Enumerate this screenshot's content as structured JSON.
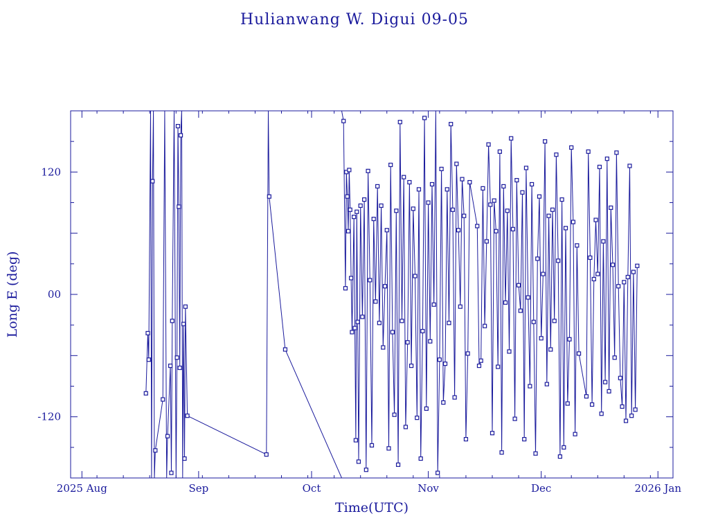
{
  "chart_data": {
    "type": "line",
    "title": "Hulianwang W. Digui 09-05",
    "xlabel": "Time(UTC)",
    "ylabel": "Long E (deg)",
    "x_range": [
      "2025-07-29",
      "2026-01-05"
    ],
    "ylim": [
      -180,
      180
    ],
    "x_ticks": [
      {
        "date": "2025-08-01",
        "label": "2025 Aug"
      },
      {
        "date": "2025-09-01",
        "label": "Sep"
      },
      {
        "date": "2025-10-01",
        "label": "Oct"
      },
      {
        "date": "2025-11-01",
        "label": "Nov"
      },
      {
        "date": "2025-12-01",
        "label": "Dec"
      },
      {
        "date": "2026-01-01",
        "label": "2026 Jan"
      }
    ],
    "y_ticks": [
      {
        "value": -120,
        "label": "-120"
      },
      {
        "value": 0,
        "label": "00"
      },
      {
        "value": 120,
        "label": "120"
      }
    ],
    "marker": "square",
    "color": "#1a1a9c",
    "series": [
      {
        "points": [
          [
            "2025-08-18T00:00",
            -97
          ],
          [
            "2025-08-18T12:00",
            -38
          ],
          [
            "2025-08-18T18:00",
            -64
          ],
          [
            "2025-08-19T06:00",
            180
          ],
          [
            "2025-08-19T12:00",
            -180
          ],
          [
            "2025-08-19T18:00",
            111
          ],
          [
            "2025-08-20T00:00",
            180
          ],
          [
            "2025-08-20T06:00",
            -180
          ],
          [
            "2025-08-20T12:00",
            -153
          ],
          [
            "2025-08-22T12:00",
            -103
          ],
          [
            "2025-08-23T00:00",
            180
          ],
          [
            "2025-08-23T12:00",
            -180
          ],
          [
            "2025-08-23T18:00",
            -139
          ],
          [
            "2025-08-24T12:00",
            -70
          ],
          [
            "2025-08-24T18:00",
            -175
          ],
          [
            "2025-08-25T00:00",
            -26
          ],
          [
            "2025-08-25T12:00",
            180
          ],
          [
            "2025-08-26T00:00",
            -180
          ],
          [
            "2025-08-26T06:00",
            -62
          ],
          [
            "2025-08-26T12:00",
            165
          ],
          [
            "2025-08-26T18:00",
            86
          ],
          [
            "2025-08-27T00:00",
            -72
          ],
          [
            "2025-08-27T06:00",
            156
          ],
          [
            "2025-08-27T12:00",
            180
          ],
          [
            "2025-08-27T18:00",
            -180
          ],
          [
            "2025-08-28T00:00",
            -29
          ],
          [
            "2025-08-28T06:00",
            -161
          ],
          [
            "2025-08-28T12:00",
            -12
          ],
          [
            "2025-08-29T00:00",
            -119
          ],
          [
            "2025-09-19T00:00",
            -157
          ],
          [
            "2025-09-19T12:00",
            180
          ],
          [
            "2025-09-19T18:00",
            96
          ],
          [
            "2025-09-24T00:00",
            -54
          ],
          [
            "2025-10-09T00:00",
            -180
          ]
        ]
      },
      {
        "points": [
          [
            "2025-10-09T00:00",
            180
          ],
          [
            "2025-10-09T12:00",
            170
          ],
          [
            "2025-10-10T00:00",
            6
          ],
          [
            "2025-10-10T06:00",
            120
          ],
          [
            "2025-10-10T12:00",
            96
          ],
          [
            "2025-10-10T18:00",
            62
          ],
          [
            "2025-10-11T00:00",
            122
          ],
          [
            "2025-10-11T06:00",
            83
          ],
          [
            "2025-10-11T12:00",
            16
          ],
          [
            "2025-10-11T18:00",
            -37
          ],
          [
            "2025-10-12T06:00",
            76
          ],
          [
            "2025-10-12T12:00",
            -33
          ],
          [
            "2025-10-12T18:00",
            -143
          ],
          [
            "2025-10-13T00:00",
            81
          ],
          [
            "2025-10-13T06:00",
            -27
          ],
          [
            "2025-10-13T12:00",
            -164
          ],
          [
            "2025-10-14T00:00",
            87
          ],
          [
            "2025-10-14T12:00",
            -22
          ],
          [
            "2025-10-15T00:00",
            93
          ],
          [
            "2025-10-15T12:00",
            -172
          ],
          [
            "2025-10-16T00:00",
            121
          ],
          [
            "2025-10-16T12:00",
            14
          ],
          [
            "2025-10-17T00:00",
            -148
          ],
          [
            "2025-10-17T12:00",
            74
          ],
          [
            "2025-10-18T00:00",
            -7
          ],
          [
            "2025-10-18T12:00",
            106
          ],
          [
            "2025-10-19T00:00",
            -28
          ],
          [
            "2025-10-19T12:00",
            87
          ],
          [
            "2025-10-20T00:00",
            -52
          ],
          [
            "2025-10-20T12:00",
            8
          ],
          [
            "2025-10-21T00:00",
            63
          ],
          [
            "2025-10-21T12:00",
            -151
          ],
          [
            "2025-10-22T00:00",
            127
          ],
          [
            "2025-10-22T12:00",
            -37
          ],
          [
            "2025-10-23T00:00",
            -118
          ],
          [
            "2025-10-23T12:00",
            82
          ],
          [
            "2025-10-24T00:00",
            -167
          ],
          [
            "2025-10-24T12:00",
            169
          ],
          [
            "2025-10-25T00:00",
            -26
          ],
          [
            "2025-10-25T12:00",
            115
          ],
          [
            "2025-10-26T00:00",
            -130
          ],
          [
            "2025-10-26T12:00",
            -47
          ],
          [
            "2025-10-27T00:00",
            110
          ],
          [
            "2025-10-27T12:00",
            -70
          ],
          [
            "2025-10-28T00:00",
            84
          ],
          [
            "2025-10-28T12:00",
            18
          ],
          [
            "2025-10-29T00:00",
            -121
          ],
          [
            "2025-10-29T12:00",
            103
          ],
          [
            "2025-10-30T00:00",
            -161
          ],
          [
            "2025-10-30T12:00",
            -36
          ],
          [
            "2025-10-31T00:00",
            173
          ],
          [
            "2025-10-31T12:00",
            -112
          ],
          [
            "2025-11-01T00:00",
            90
          ],
          [
            "2025-11-01T12:00",
            -46
          ],
          [
            "2025-11-02T00:00",
            108
          ],
          [
            "2025-11-02T12:00",
            -10
          ],
          [
            "2025-11-03T00:00",
            180
          ],
          [
            "2025-11-03T12:00",
            -175
          ],
          [
            "2025-11-04T00:00",
            -64
          ],
          [
            "2025-11-04T12:00",
            123
          ],
          [
            "2025-11-05T00:00",
            -106
          ],
          [
            "2025-11-05T12:00",
            -68
          ],
          [
            "2025-11-06T00:00",
            103
          ],
          [
            "2025-11-06T12:00",
            -28
          ],
          [
            "2025-11-07T00:00",
            167
          ],
          [
            "2025-11-07T12:00",
            83
          ],
          [
            "2025-11-08T00:00",
            -101
          ],
          [
            "2025-11-08T12:00",
            128
          ],
          [
            "2025-11-09T00:00",
            63
          ],
          [
            "2025-11-09T12:00",
            -12
          ],
          [
            "2025-11-10T00:00",
            113
          ],
          [
            "2025-11-10T12:00",
            77
          ],
          [
            "2025-11-11T00:00",
            -142
          ],
          [
            "2025-11-11T12:00",
            -58
          ],
          [
            "2025-11-12T00:00",
            110
          ],
          [
            "2025-11-14T00:00",
            67
          ],
          [
            "2025-11-14T12:00",
            -70
          ],
          [
            "2025-11-15T00:00",
            -65
          ],
          [
            "2025-11-15T12:00",
            104
          ],
          [
            "2025-11-16T00:00",
            -31
          ],
          [
            "2025-11-16T12:00",
            52
          ],
          [
            "2025-11-17T00:00",
            147
          ],
          [
            "2025-11-17T12:00",
            88
          ],
          [
            "2025-11-18T00:00",
            -136
          ],
          [
            "2025-11-18T12:00",
            92
          ],
          [
            "2025-11-19T00:00",
            62
          ],
          [
            "2025-11-19T12:00",
            -71
          ],
          [
            "2025-11-20T00:00",
            140
          ],
          [
            "2025-11-20T12:00",
            -155
          ],
          [
            "2025-11-21T00:00",
            106
          ],
          [
            "2025-11-21T12:00",
            -8
          ],
          [
            "2025-11-22T00:00",
            82
          ],
          [
            "2025-11-22T12:00",
            -56
          ],
          [
            "2025-11-23T00:00",
            153
          ],
          [
            "2025-11-23T12:00",
            64
          ],
          [
            "2025-11-24T00:00",
            -122
          ],
          [
            "2025-11-24T12:00",
            112
          ],
          [
            "2025-11-25T00:00",
            9
          ],
          [
            "2025-11-25T12:00",
            -16
          ],
          [
            "2025-11-26T00:00",
            100
          ],
          [
            "2025-11-26T12:00",
            -142
          ],
          [
            "2025-11-27T00:00",
            124
          ],
          [
            "2025-11-27T12:00",
            -3
          ],
          [
            "2025-11-28T00:00",
            -90
          ],
          [
            "2025-11-28T12:00",
            108
          ],
          [
            "2025-11-29T00:00",
            -27
          ],
          [
            "2025-11-29T12:00",
            -156
          ],
          [
            "2025-11-30T00:00",
            35
          ],
          [
            "2025-11-30T12:00",
            96
          ],
          [
            "2025-12-01T00:00",
            -43
          ],
          [
            "2025-12-01T12:00",
            20
          ],
          [
            "2025-12-02T00:00",
            150
          ],
          [
            "2025-12-02T12:00",
            -88
          ],
          [
            "2025-12-03T00:00",
            77
          ],
          [
            "2025-12-03T12:00",
            -54
          ],
          [
            "2025-12-04T00:00",
            83
          ],
          [
            "2025-12-04T12:00",
            -26
          ],
          [
            "2025-12-05T00:00",
            137
          ],
          [
            "2025-12-05T12:00",
            33
          ],
          [
            "2025-12-06T00:00",
            -159
          ],
          [
            "2025-12-06T12:00",
            93
          ],
          [
            "2025-12-07T00:00",
            -150
          ],
          [
            "2025-12-07T12:00",
            65
          ],
          [
            "2025-12-08T00:00",
            -107
          ],
          [
            "2025-12-08T12:00",
            -44
          ],
          [
            "2025-12-09T00:00",
            144
          ],
          [
            "2025-12-09T12:00",
            71
          ],
          [
            "2025-12-10T00:00",
            -137
          ],
          [
            "2025-12-10T12:00",
            48
          ],
          [
            "2025-12-11T00:00",
            -58
          ],
          [
            "2025-12-13T00:00",
            -100
          ],
          [
            "2025-12-13T12:00",
            140
          ],
          [
            "2025-12-14T00:00",
            36
          ],
          [
            "2025-12-14T12:00",
            -108
          ],
          [
            "2025-12-15T00:00",
            15
          ],
          [
            "2025-12-15T12:00",
            73
          ],
          [
            "2025-12-16T00:00",
            20
          ],
          [
            "2025-12-16T12:00",
            125
          ],
          [
            "2025-12-17T00:00",
            -117
          ],
          [
            "2025-12-17T12:00",
            52
          ],
          [
            "2025-12-18T00:00",
            -86
          ],
          [
            "2025-12-18T12:00",
            133
          ],
          [
            "2025-12-19T00:00",
            -95
          ],
          [
            "2025-12-19T12:00",
            85
          ],
          [
            "2025-12-20T00:00",
            29
          ],
          [
            "2025-12-20T12:00",
            -62
          ],
          [
            "2025-12-21T00:00",
            139
          ],
          [
            "2025-12-21T12:00",
            8
          ],
          [
            "2025-12-22T00:00",
            -82
          ],
          [
            "2025-12-22T12:00",
            -110
          ],
          [
            "2025-12-23T00:00",
            12
          ],
          [
            "2025-12-23T12:00",
            -124
          ],
          [
            "2025-12-24T00:00",
            17
          ],
          [
            "2025-12-24T12:00",
            126
          ],
          [
            "2025-12-25T00:00",
            -119
          ],
          [
            "2025-12-25T12:00",
            22
          ],
          [
            "2025-12-26T00:00",
            -113
          ],
          [
            "2025-12-26T12:00",
            28
          ]
        ]
      }
    ]
  }
}
